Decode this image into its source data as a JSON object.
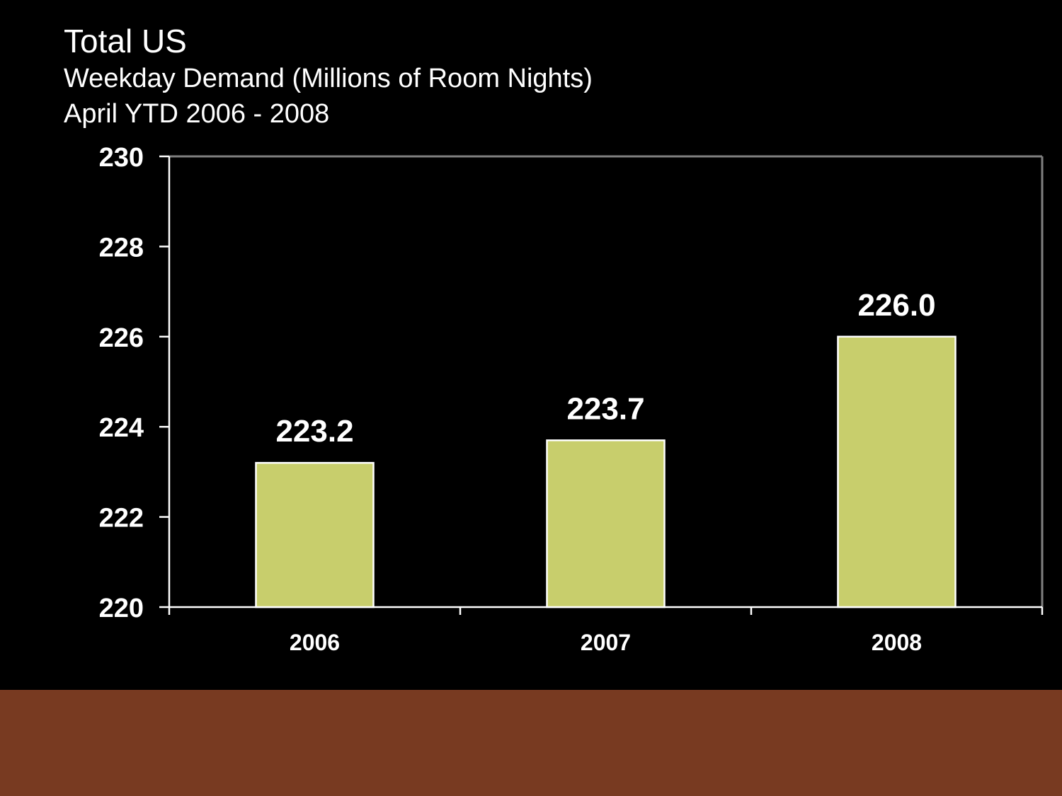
{
  "slide": {
    "footer_color": "#783a21",
    "background": "#000000"
  },
  "chart_data": {
    "type": "bar",
    "title": "Total US",
    "subtitle": "Weekday Demand (Millions of Room Nights)",
    "subtitle2": "April YTD 2006 - 2008",
    "categories": [
      "2006",
      "2007",
      "2008"
    ],
    "values": [
      223.2,
      223.7,
      226.0
    ],
    "data_labels": [
      "223.2",
      "223.7",
      "226.0"
    ],
    "ylim": [
      220,
      230
    ],
    "yticks": [
      220,
      222,
      224,
      226,
      228,
      230
    ],
    "ytick_labels": [
      "220",
      "222",
      "224",
      "226",
      "228",
      "230"
    ],
    "xlabel": "",
    "ylabel": "",
    "grid": false,
    "legend": "none",
    "bar_color": "#c8ce6c",
    "bar_edge_color": "#ffffff",
    "axis_color": "#ffffff",
    "frame_color": "#808080"
  }
}
